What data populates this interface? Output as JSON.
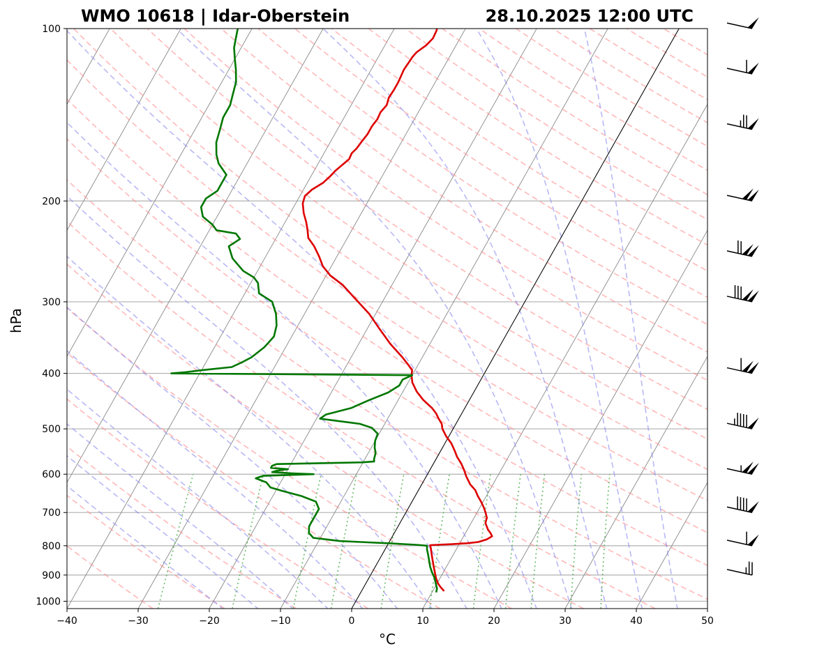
{
  "chart_data": {
    "type": "line",
    "subtype": "skew-t log-p diagram",
    "title_left": "WMO 10618 | Idar-Oberstein",
    "title_right": "28.10.2025 12:00 UTC",
    "xlabel": "°C",
    "ylabel": "hPa",
    "xlim": [
      -40,
      50
    ],
    "ylim_hpa": [
      1030,
      100
    ],
    "x_ticks": [
      -40,
      -30,
      -20,
      -10,
      0,
      10,
      20,
      30,
      40,
      50
    ],
    "x_tick_labels": [
      "−40",
      "−30",
      "−20",
      "−10",
      "0",
      "10",
      "20",
      "30",
      "40",
      "50"
    ],
    "y_ticks": [
      100,
      200,
      300,
      400,
      500,
      600,
      700,
      800,
      900,
      1000
    ],
    "y_tick_labels": [
      "100",
      "200",
      "300",
      "400",
      "500",
      "600",
      "700",
      "800",
      "900",
      "1000"
    ],
    "colors": {
      "temperature": "#dd0000",
      "dewpoint": "#007700",
      "dry_adiabats": "#ff8888",
      "moist_adiabats": "#8888ee",
      "mixing_ratio": "#44aa44",
      "isotherms": "#888888",
      "grid": "#b0b0b0",
      "zero_isotherm": "#000000"
    },
    "series": [
      {
        "name": "Temperature",
        "points": [
          [
            960,
            11.6
          ],
          [
            945,
            10.8
          ],
          [
            930,
            10.1
          ],
          [
            910,
            9.4
          ],
          [
            890,
            8.8
          ],
          [
            870,
            8.2
          ],
          [
            850,
            7.6
          ],
          [
            830,
            7.0
          ],
          [
            810,
            6.4
          ],
          [
            798,
            6.0
          ],
          [
            797,
            7.0
          ],
          [
            795,
            9.0
          ],
          [
            792,
            11.0
          ],
          [
            788,
            12.5
          ],
          [
            780,
            13.5
          ],
          [
            770,
            14.0
          ],
          [
            760,
            13.5
          ],
          [
            750,
            12.9
          ],
          [
            730,
            12.0
          ],
          [
            715,
            11.8
          ],
          [
            700,
            11.2
          ],
          [
            685,
            10.5
          ],
          [
            670,
            9.7
          ],
          [
            655,
            8.8
          ],
          [
            640,
            8.0
          ],
          [
            625,
            6.8
          ],
          [
            605,
            5.6
          ],
          [
            590,
            4.8
          ],
          [
            575,
            3.9
          ],
          [
            560,
            2.8
          ],
          [
            545,
            1.9
          ],
          [
            530,
            0.9
          ],
          [
            515,
            -0.4
          ],
          [
            500,
            -1.5
          ],
          [
            490,
            -2.0
          ],
          [
            478,
            -3.0
          ],
          [
            470,
            -3.6
          ],
          [
            460,
            -4.6
          ],
          [
            445,
            -6.5
          ],
          [
            430,
            -8.1
          ],
          [
            415,
            -9.4
          ],
          [
            403,
            -10.1
          ],
          [
            395,
            -10.4
          ],
          [
            388,
            -11.2
          ],
          [
            375,
            -12.8
          ],
          [
            355,
            -15.6
          ],
          [
            335,
            -18.2
          ],
          [
            315,
            -20.9
          ],
          [
            295,
            -24.3
          ],
          [
            280,
            -27.0
          ],
          [
            270,
            -29.4
          ],
          [
            260,
            -31.2
          ],
          [
            250,
            -32.5
          ],
          [
            240,
            -34.0
          ],
          [
            232,
            -35.5
          ],
          [
            225,
            -36.2
          ],
          [
            218,
            -37.0
          ],
          [
            210,
            -38.1
          ],
          [
            202,
            -39.0
          ],
          [
            196,
            -39.3
          ],
          [
            191,
            -38.8
          ],
          [
            186,
            -37.8
          ],
          [
            181,
            -37.3
          ],
          [
            177,
            -37.0
          ],
          [
            173,
            -36.5
          ],
          [
            169,
            -36.0
          ],
          [
            165,
            -36.1
          ],
          [
            162,
            -35.8
          ],
          [
            157,
            -35.6
          ],
          [
            153,
            -35.4
          ],
          [
            148,
            -35.4
          ],
          [
            144,
            -35.2
          ],
          [
            140,
            -35.3
          ],
          [
            136,
            -35.0
          ],
          [
            132,
            -35.3
          ],
          [
            128,
            -35.2
          ],
          [
            124,
            -35.2
          ],
          [
            121,
            -35.3
          ],
          [
            118,
            -35.4
          ],
          [
            115,
            -35.3
          ],
          [
            112,
            -35.2
          ],
          [
            110,
            -35.0
          ],
          [
            107,
            -34.2
          ],
          [
            104,
            -33.8
          ],
          [
            101,
            -33.9
          ],
          [
            100,
            -34.0
          ]
        ]
      },
      {
        "name": "Dewpoint",
        "points": [
          [
            965,
            10.6
          ],
          [
            950,
            10.4
          ],
          [
            930,
            9.8
          ],
          [
            910,
            9.2
          ],
          [
            890,
            8.4
          ],
          [
            870,
            7.7
          ],
          [
            850,
            7.1
          ],
          [
            830,
            6.5
          ],
          [
            812,
            5.9
          ],
          [
            800,
            5.6
          ],
          [
            797,
            4.0
          ],
          [
            792,
            0.0
          ],
          [
            788,
            -4.0
          ],
          [
            785,
            -7.0
          ],
          [
            780,
            -9.0
          ],
          [
            775,
            -11.0
          ],
          [
            760,
            -12.0
          ],
          [
            740,
            -12.5
          ],
          [
            722,
            -12.5
          ],
          [
            705,
            -12.5
          ],
          [
            690,
            -12.5
          ],
          [
            670,
            -13.5
          ],
          [
            655,
            -16.0
          ],
          [
            642,
            -19.0
          ],
          [
            633,
            -21.0
          ],
          [
            620,
            -22.0
          ],
          [
            610,
            -23.8
          ],
          [
            604,
            -23.0
          ],
          [
            600,
            -16.0
          ],
          [
            598,
            -19.0
          ],
          [
            595,
            -22.0
          ],
          [
            592,
            -21.5
          ],
          [
            588,
            -20.0
          ],
          [
            585,
            -22.5
          ],
          [
            580,
            -22.5
          ],
          [
            576,
            -22.0
          ],
          [
            572,
            -10.0
          ],
          [
            570,
            -8.5
          ],
          [
            565,
            -8.7
          ],
          [
            550,
            -9.0
          ],
          [
            540,
            -9.5
          ],
          [
            525,
            -10.0
          ],
          [
            510,
            -10.2
          ],
          [
            498,
            -11.5
          ],
          [
            490,
            -13.5
          ],
          [
            480,
            -19.5
          ],
          [
            472,
            -19.0
          ],
          [
            460,
            -16.0
          ],
          [
            445,
            -14.0
          ],
          [
            432,
            -12.0
          ],
          [
            420,
            -11.0
          ],
          [
            410,
            -11.0
          ],
          [
            403,
            -10.0
          ],
          [
            400,
            -44.0
          ],
          [
            398,
            -42.0
          ],
          [
            395,
            -40.0
          ],
          [
            390,
            -36.0
          ],
          [
            383,
            -35.0
          ],
          [
            375,
            -34.0
          ],
          [
            360,
            -33.0
          ],
          [
            345,
            -32.5
          ],
          [
            330,
            -33.0
          ],
          [
            315,
            -34.0
          ],
          [
            300,
            -35.5
          ],
          [
            290,
            -38.0
          ],
          [
            284,
            -38.5
          ],
          [
            278,
            -39.0
          ],
          [
            272,
            -40.0
          ],
          [
            265,
            -42.0
          ],
          [
            252,
            -44.5
          ],
          [
            240,
            -46.0
          ],
          [
            233,
            -45.0
          ],
          [
            228,
            -46.0
          ],
          [
            225,
            -49.0
          ],
          [
            220,
            -50.0
          ],
          [
            213,
            -52.0
          ],
          [
            205,
            -53.0
          ],
          [
            198,
            -53.0
          ],
          [
            192,
            -52.0
          ],
          [
            186,
            -52.0
          ],
          [
            180,
            -52.0
          ],
          [
            172,
            -54.0
          ],
          [
            166,
            -55.0
          ],
          [
            158,
            -56.0
          ],
          [
            150,
            -56.5
          ],
          [
            143,
            -57.0
          ],
          [
            136,
            -57.0
          ],
          [
            130,
            -57.5
          ],
          [
            124,
            -58.0
          ],
          [
            118,
            -59.0
          ],
          [
            113,
            -60.0
          ],
          [
            108,
            -61.0
          ],
          [
            104,
            -61.5
          ],
          [
            100,
            -62.0
          ]
        ]
      }
    ],
    "wind_barbs": [
      {
        "p": 900,
        "dir": 260,
        "speed_kt": 25
      },
      {
        "p": 800,
        "dir": 260,
        "speed_kt": 60
      },
      {
        "p": 700,
        "dir": 260,
        "speed_kt": 90
      },
      {
        "p": 600,
        "dir": 260,
        "speed_kt": 105
      },
      {
        "p": 500,
        "dir": 260,
        "speed_kt": 95
      },
      {
        "p": 400,
        "dir": 260,
        "speed_kt": 110
      },
      {
        "p": 300,
        "dir": 260,
        "speed_kt": 130
      },
      {
        "p": 250,
        "dir": 260,
        "speed_kt": 120
      },
      {
        "p": 200,
        "dir": 260,
        "speed_kt": 100
      },
      {
        "p": 150,
        "dir": 260,
        "speed_kt": 75
      },
      {
        "p": 120,
        "dir": 260,
        "speed_kt": 60
      },
      {
        "p": 100,
        "dir": 260,
        "speed_kt": 50
      }
    ]
  }
}
